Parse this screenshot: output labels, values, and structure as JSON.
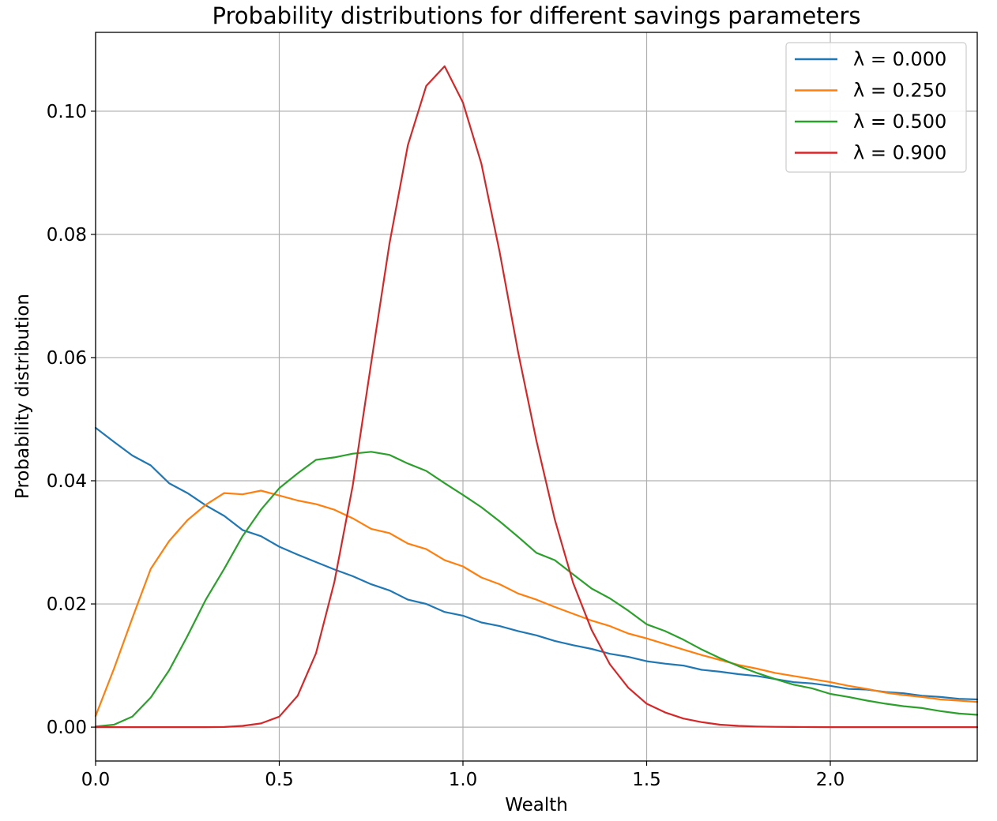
{
  "chart_data": {
    "type": "line",
    "title": "Probability distributions for different savings parameters",
    "xlabel": "Wealth",
    "ylabel": "Probability distribution",
    "xlim": [
      0.0,
      2.4
    ],
    "ylim": [
      -0.0055,
      0.1128
    ],
    "xticks": [
      0.0,
      0.5,
      1.0,
      1.5,
      2.0
    ],
    "xtick_labels": [
      "0.0",
      "0.5",
      "1.0",
      "1.5",
      "2.0"
    ],
    "yticks": [
      0.0,
      0.02,
      0.04,
      0.06,
      0.08,
      0.1
    ],
    "ytick_labels": [
      "0.00",
      "0.02",
      "0.04",
      "0.06",
      "0.08",
      "0.10"
    ],
    "grid": true,
    "legend_position": "top-right",
    "x": [
      0.0,
      0.05,
      0.1,
      0.15,
      0.2,
      0.25,
      0.3,
      0.35,
      0.4,
      0.45,
      0.5,
      0.55,
      0.6,
      0.65,
      0.7,
      0.75,
      0.8,
      0.85,
      0.9,
      0.95,
      1.0,
      1.05,
      1.1,
      1.15,
      1.2,
      1.25,
      1.3,
      1.35,
      1.4,
      1.45,
      1.5,
      1.55,
      1.6,
      1.65,
      1.7,
      1.75,
      1.8,
      1.85,
      1.9,
      1.95,
      2.0,
      2.05,
      2.1,
      2.15,
      2.2,
      2.25,
      2.3,
      2.35,
      2.4
    ],
    "series": [
      {
        "name": "λ = 0.000",
        "color": "#1f77b4",
        "values": [
          0.0486,
          0.0463,
          0.0441,
          0.0425,
          0.0396,
          0.038,
          0.036,
          0.0343,
          0.032,
          0.031,
          0.0293,
          0.028,
          0.0268,
          0.0256,
          0.0245,
          0.0232,
          0.0222,
          0.0207,
          0.02,
          0.0187,
          0.0181,
          0.017,
          0.0164,
          0.0156,
          0.0149,
          0.014,
          0.0133,
          0.0127,
          0.0119,
          0.0114,
          0.0107,
          0.0103,
          0.01,
          0.0093,
          0.009,
          0.0086,
          0.0083,
          0.0078,
          0.0073,
          0.0071,
          0.0067,
          0.0062,
          0.0061,
          0.0057,
          0.0055,
          0.0051,
          0.0049,
          0.0046,
          0.0045
        ]
      },
      {
        "name": "λ = 0.250",
        "color": "#ff7f0e",
        "values": [
          0.0018,
          0.0095,
          0.0177,
          0.0257,
          0.0302,
          0.0336,
          0.0361,
          0.038,
          0.0378,
          0.0384,
          0.0376,
          0.0368,
          0.0362,
          0.0353,
          0.0339,
          0.0322,
          0.0315,
          0.0298,
          0.0289,
          0.0271,
          0.0261,
          0.0243,
          0.0232,
          0.0217,
          0.0207,
          0.0195,
          0.0184,
          0.0173,
          0.0164,
          0.0152,
          0.0144,
          0.0135,
          0.0126,
          0.0117,
          0.0109,
          0.0101,
          0.0095,
          0.0088,
          0.0083,
          0.0078,
          0.0073,
          0.0067,
          0.0062,
          0.0056,
          0.0052,
          0.0049,
          0.0045,
          0.0043,
          0.0041
        ]
      },
      {
        "name": "λ = 0.500",
        "color": "#2ca02c",
        "values": [
          0.0001,
          0.0004,
          0.0017,
          0.0048,
          0.0092,
          0.0148,
          0.0207,
          0.0257,
          0.031,
          0.0353,
          0.0388,
          0.0412,
          0.0434,
          0.0438,
          0.0444,
          0.0447,
          0.0442,
          0.0428,
          0.0416,
          0.0396,
          0.0377,
          0.0357,
          0.0334,
          0.0309,
          0.0283,
          0.0271,
          0.0248,
          0.0225,
          0.0209,
          0.0189,
          0.0167,
          0.0156,
          0.0142,
          0.0126,
          0.0112,
          0.0099,
          0.0088,
          0.0078,
          0.0069,
          0.0063,
          0.0054,
          0.0049,
          0.0043,
          0.0038,
          0.0034,
          0.0031,
          0.0026,
          0.0022,
          0.002
        ]
      },
      {
        "name": "λ = 0.900",
        "color": "#d62728",
        "values": [
          0.0,
          0.0,
          0.0,
          0.0,
          0.0,
          0.0,
          0.0,
          3e-05,
          0.0002,
          0.0006,
          0.0017,
          0.0051,
          0.012,
          0.0236,
          0.0392,
          0.0591,
          0.0785,
          0.0945,
          0.1041,
          0.1073,
          0.1014,
          0.0915,
          0.0771,
          0.0609,
          0.0465,
          0.0337,
          0.0234,
          0.0158,
          0.0102,
          0.0064,
          0.0038,
          0.0024,
          0.0014,
          0.0008,
          0.0004,
          0.0002,
          0.0001,
          5e-05,
          3e-05,
          1e-05,
          0.0,
          0.0,
          0.0,
          0.0,
          0.0,
          0.0,
          0.0,
          0.0,
          0.0
        ]
      }
    ]
  }
}
